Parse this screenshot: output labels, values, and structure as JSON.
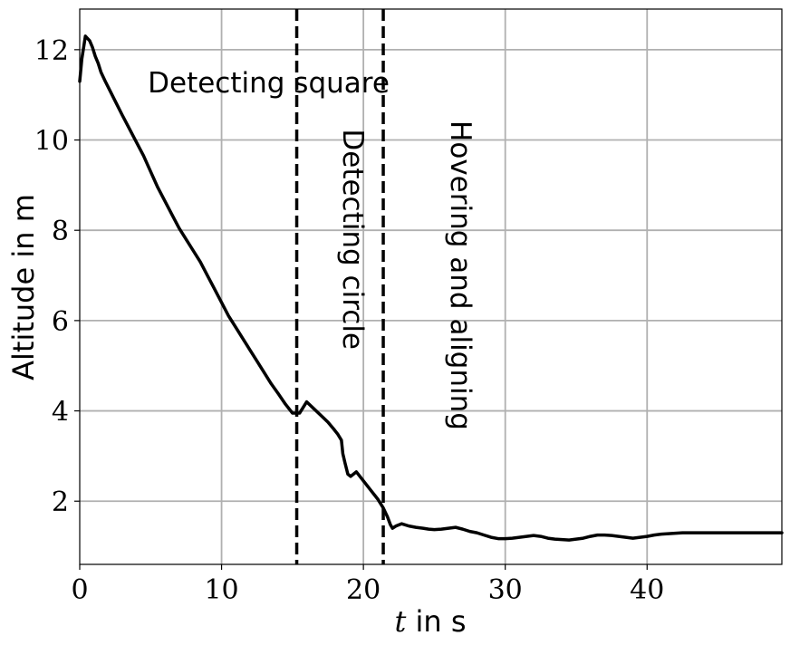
{
  "chart_data": {
    "type": "line",
    "title": "",
    "xlabel_var": "t",
    "xlabel_rest": " in s",
    "ylabel": "Altitude in m",
    "xlim": [
      0,
      49.5
    ],
    "ylim": [
      0.6,
      12.9
    ],
    "xticks": [
      0,
      10,
      20,
      30,
      40
    ],
    "yticks": [
      2,
      4,
      6,
      8,
      10,
      12
    ],
    "grid": true,
    "colors": {
      "line": "#000000",
      "grid": "#b0b0b0",
      "phase_line": "#000000"
    },
    "series": [
      {
        "name": "Altitude",
        "x": [
          0,
          0.15,
          0.4,
          0.55,
          0.7,
          0.9,
          1.1,
          1.3,
          1.5,
          1.8,
          2.2,
          2.6,
          3.0,
          3.5,
          4.0,
          4.5,
          5.0,
          5.5,
          6.0,
          6.5,
          7.0,
          7.5,
          8.0,
          8.5,
          9.0,
          9.5,
          10.0,
          10.5,
          11.0,
          11.5,
          12.0,
          12.5,
          13.0,
          13.5,
          14.0,
          14.5,
          15.0,
          15.5,
          16.0,
          16.5,
          17.0,
          17.5,
          17.9,
          18.2,
          18.45,
          18.55,
          18.7,
          18.9,
          19.1,
          19.5,
          20.0,
          20.5,
          21.0,
          21.4,
          21.7,
          21.9,
          22.05,
          22.3,
          22.7,
          23.2,
          23.7,
          24.2,
          24.6,
          25.0,
          25.5,
          26.0,
          26.5,
          27.0,
          27.5,
          28.0,
          28.5,
          29.0,
          29.5,
          30.0,
          30.5,
          31.0,
          31.5,
          32.0,
          32.5,
          33.0,
          33.5,
          34.0,
          34.5,
          35.0,
          35.5,
          36.0,
          36.5,
          37.0,
          37.5,
          38.0,
          38.5,
          39.0,
          39.5,
          40.0,
          40.5,
          41.0,
          41.5,
          42.0,
          42.5,
          43.0,
          43.5,
          44.0,
          44.5,
          45.0,
          46.0,
          47.0,
          48.0,
          49.5
        ],
        "y": [
          11.3,
          11.8,
          12.3,
          12.25,
          12.2,
          12.05,
          11.85,
          11.7,
          11.5,
          11.3,
          11.05,
          10.8,
          10.55,
          10.25,
          9.95,
          9.65,
          9.3,
          8.95,
          8.65,
          8.35,
          8.05,
          7.8,
          7.55,
          7.3,
          7.0,
          6.7,
          6.4,
          6.1,
          5.85,
          5.6,
          5.35,
          5.1,
          4.85,
          4.6,
          4.38,
          4.15,
          3.95,
          3.95,
          4.2,
          4.05,
          3.9,
          3.75,
          3.6,
          3.48,
          3.35,
          3.05,
          2.85,
          2.6,
          2.55,
          2.65,
          2.45,
          2.25,
          2.05,
          1.85,
          1.65,
          1.48,
          1.4,
          1.45,
          1.5,
          1.45,
          1.42,
          1.4,
          1.38,
          1.37,
          1.38,
          1.4,
          1.42,
          1.38,
          1.33,
          1.3,
          1.25,
          1.2,
          1.17,
          1.17,
          1.18,
          1.2,
          1.22,
          1.24,
          1.22,
          1.18,
          1.16,
          1.15,
          1.14,
          1.16,
          1.18,
          1.22,
          1.25,
          1.25,
          1.24,
          1.22,
          1.2,
          1.18,
          1.2,
          1.22,
          1.25,
          1.27,
          1.28,
          1.29,
          1.3,
          1.3,
          1.3,
          1.3,
          1.3,
          1.3,
          1.3,
          1.3,
          1.3,
          1.3
        ]
      }
    ],
    "phase_lines": [
      15.3,
      21.4
    ],
    "annotations": [
      {
        "text": "Detecting square",
        "x": 4.8,
        "y": 11.05,
        "rotation": 0
      },
      {
        "text": "Detecting circle",
        "x": 18.6,
        "y": 7.8,
        "rotation": 90
      },
      {
        "text": "Hovering and aligning",
        "x": 26.2,
        "y": 7.0,
        "rotation": 90
      }
    ]
  }
}
